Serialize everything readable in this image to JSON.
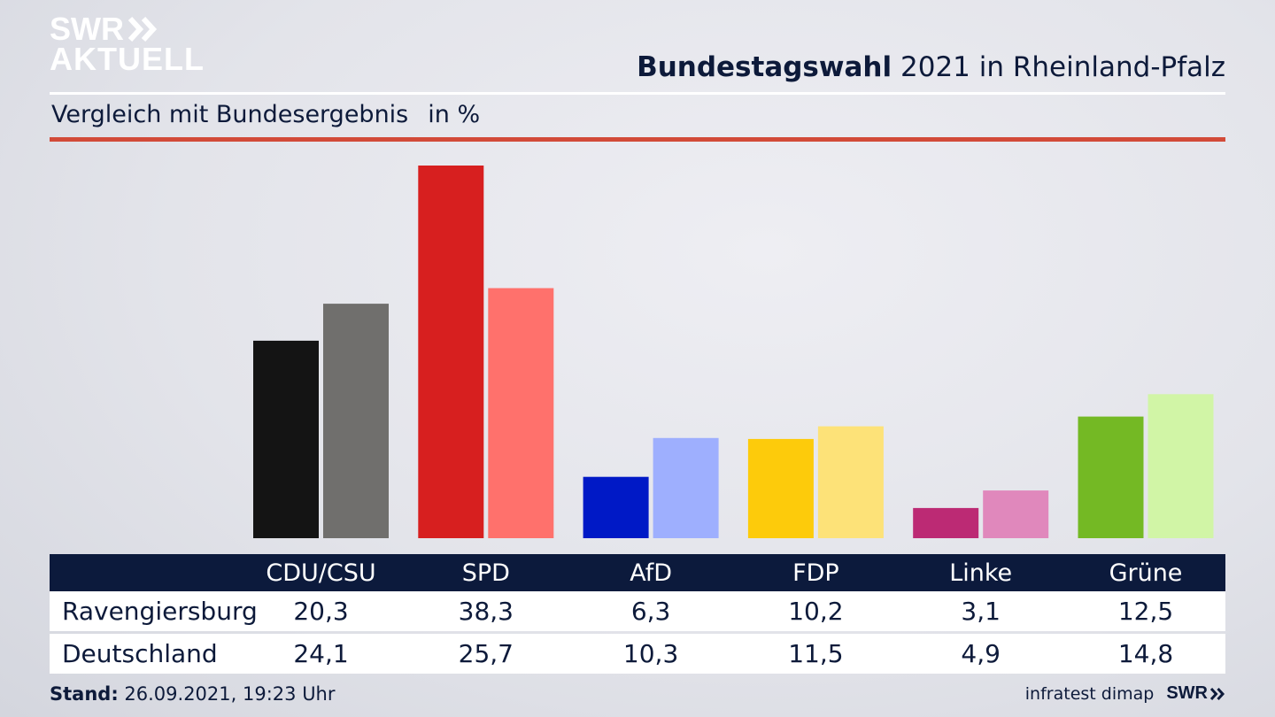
{
  "header": {
    "logo_line1": "SWR",
    "logo_line2": "AKTUELL",
    "title_bold": "Bundestagswahl",
    "title_rest": "2021 in Rheinland-Pfalz",
    "subtitle": "Vergleich mit Bundesergebnis",
    "unit": "in %"
  },
  "footer": {
    "stand_label": "Stand:",
    "stand_value": "26.09.2021, 19:23 Uhr",
    "source": "infratest dimap",
    "brand": "SWR"
  },
  "colors": {
    "accent_rule": "#d24a38",
    "table_header": "#0c1a3c"
  },
  "chart_data": {
    "type": "bar",
    "categories": [
      "CDU/CSU",
      "SPD",
      "AfD",
      "FDP",
      "Linke",
      "Grüne"
    ],
    "series": [
      {
        "name": "Ravengiersburg",
        "values": [
          20.3,
          38.3,
          6.3,
          10.2,
          3.1,
          12.5
        ],
        "labels": [
          "20,3",
          "38,3",
          "6,3",
          "10,2",
          "3,1",
          "12,5"
        ],
        "colors": [
          "#141414",
          "#d71f1f",
          "#0019c6",
          "#fdcb0b",
          "#bc2a74",
          "#74b924"
        ]
      },
      {
        "name": "Deutschland",
        "values": [
          24.1,
          25.7,
          10.3,
          11.5,
          4.9,
          14.8
        ],
        "labels": [
          "24,1",
          "25,7",
          "10,3",
          "11,5",
          "4,9",
          "14,8"
        ],
        "colors": [
          "#706f6d",
          "#ff716c",
          "#9eaffe",
          "#fde278",
          "#e088bc",
          "#d1f5a6"
        ]
      }
    ],
    "ylim": [
      0,
      38.3
    ]
  }
}
